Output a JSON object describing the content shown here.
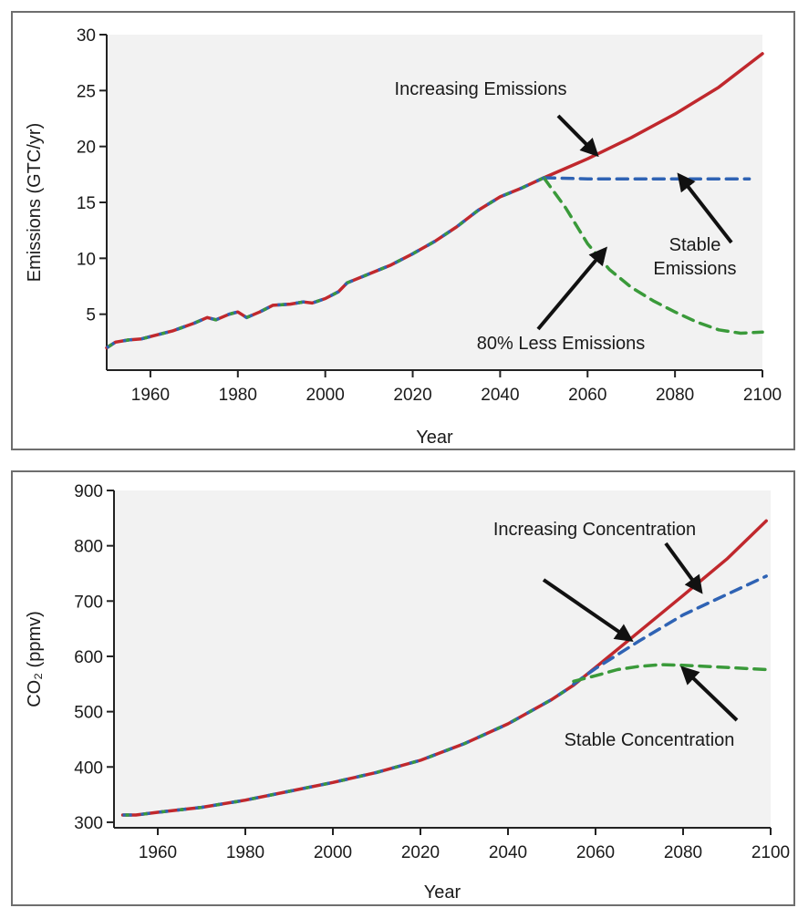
{
  "chart_data": [
    {
      "type": "line",
      "title": "",
      "xlabel": "Year",
      "ylabel": "Emissions (GTC/yr)",
      "xlim": [
        1950,
        2100
      ],
      "ylim": [
        0,
        30
      ],
      "xticks": [
        1960,
        1980,
        2000,
        2020,
        2040,
        2060,
        2080,
        2100
      ],
      "yticks": [
        5,
        10,
        15,
        20,
        25,
        30
      ],
      "grid": false,
      "legend": "none",
      "series": [
        {
          "name": "Increasing Emissions",
          "color": "#c0282d",
          "style": "solid",
          "points": [
            [
              1950,
              2.0
            ],
            [
              1952,
              2.5
            ],
            [
              1955,
              2.7
            ],
            [
              1958,
              2.8
            ],
            [
              1960,
              3.0
            ],
            [
              1965,
              3.5
            ],
            [
              1970,
              4.2
            ],
            [
              1973,
              4.7
            ],
            [
              1975,
              4.5
            ],
            [
              1978,
              5.0
            ],
            [
              1980,
              5.2
            ],
            [
              1982,
              4.7
            ],
            [
              1985,
              5.2
            ],
            [
              1988,
              5.8
            ],
            [
              1992,
              5.9
            ],
            [
              1995,
              6.1
            ],
            [
              1997,
              6.0
            ],
            [
              2000,
              6.4
            ],
            [
              2003,
              7.0
            ],
            [
              2005,
              7.8
            ],
            [
              2010,
              8.6
            ],
            [
              2015,
              9.4
            ],
            [
              2020,
              10.4
            ],
            [
              2025,
              11.5
            ],
            [
              2030,
              12.8
            ],
            [
              2035,
              14.3
            ],
            [
              2040,
              15.5
            ],
            [
              2045,
              16.3
            ],
            [
              2050,
              17.2
            ],
            [
              2060,
              18.9
            ],
            [
              2070,
              20.8
            ],
            [
              2080,
              22.9
            ],
            [
              2090,
              25.3
            ],
            [
              2100,
              28.3
            ]
          ]
        },
        {
          "name": "Stable Emissions",
          "color": "#2f63b4",
          "style": "dashed",
          "points": [
            [
              2050,
              17.2
            ],
            [
              2060,
              17.1
            ],
            [
              2070,
              17.1
            ],
            [
              2080,
              17.1
            ],
            [
              2090,
              17.1
            ],
            [
              2097,
              17.1
            ]
          ]
        },
        {
          "name": "80% Less Emissions",
          "color": "#3a9a3a",
          "style": "dashed",
          "points": [
            [
              2050,
              17.2
            ],
            [
              2055,
              14.5
            ],
            [
              2060,
              11.3
            ],
            [
              2065,
              9.0
            ],
            [
              2070,
              7.4
            ],
            [
              2075,
              6.2
            ],
            [
              2080,
              5.2
            ],
            [
              2085,
              4.3
            ],
            [
              2090,
              3.6
            ],
            [
              2095,
              3.3
            ],
            [
              2100,
              3.4
            ]
          ]
        }
      ],
      "annotations": [
        {
          "lines": [
            "Increasing Emissions"
          ],
          "arrow_to": [
            2062,
            19.3
          ]
        },
        {
          "lines": [
            "Stable",
            "Emissions"
          ],
          "arrow_to": [
            2081,
            17.4
          ]
        },
        {
          "lines": [
            "80% Less Emissions"
          ],
          "arrow_to": [
            2064,
            10.8
          ]
        }
      ]
    },
    {
      "type": "line",
      "title": "",
      "xlabel": "Year",
      "ylabel": "CO₂ (ppmv)",
      "xlim": [
        1950,
        2100
      ],
      "ylim": [
        290,
        900
      ],
      "xticks": [
        1960,
        1980,
        2000,
        2020,
        2040,
        2060,
        2080,
        2100
      ],
      "yticks": [
        300,
        400,
        500,
        600,
        700,
        800,
        900
      ],
      "grid": false,
      "legend": "none",
      "series": [
        {
          "name": "Increasing Concentration",
          "color": "#c0282d",
          "style": "solid",
          "points": [
            [
              1952,
              313
            ],
            [
              1955,
              313
            ],
            [
              1960,
              318
            ],
            [
              1970,
              327
            ],
            [
              1980,
              340
            ],
            [
              1990,
              356
            ],
            [
              2000,
              372
            ],
            [
              2010,
              390
            ],
            [
              2020,
              412
            ],
            [
              2030,
              442
            ],
            [
              2040,
              478
            ],
            [
              2050,
              522
            ],
            [
              2055,
              548
            ],
            [
              2060,
              580
            ],
            [
              2070,
              645
            ],
            [
              2080,
              710
            ],
            [
              2090,
              776
            ],
            [
              2099,
              845
            ]
          ]
        },
        {
          "name": "",
          "color": "#2f63b4",
          "style": "dashed",
          "points": [
            [
              2055,
              550
            ],
            [
              2060,
              578
            ],
            [
              2070,
              628
            ],
            [
              2080,
              675
            ],
            [
              2090,
              712
            ],
            [
              2099,
              745
            ]
          ]
        },
        {
          "name": "Stable Concentration",
          "color": "#3a9a3a",
          "style": "dashed",
          "points": [
            [
              2055,
              555
            ],
            [
              2060,
              565
            ],
            [
              2065,
              576
            ],
            [
              2070,
              582
            ],
            [
              2075,
              585
            ],
            [
              2080,
              584
            ],
            [
              2090,
              580
            ],
            [
              2099,
              576
            ]
          ]
        }
      ],
      "annotations": [
        {
          "lines": [
            "Increasing Concentration"
          ],
          "arrow_to": [
            2068,
            630
          ]
        },
        {
          "lines": [],
          "arrow_to": [
            2084,
            718
          ]
        },
        {
          "lines": [
            "Stable Concentration"
          ],
          "arrow_to": [
            2080,
            578
          ]
        }
      ]
    }
  ]
}
